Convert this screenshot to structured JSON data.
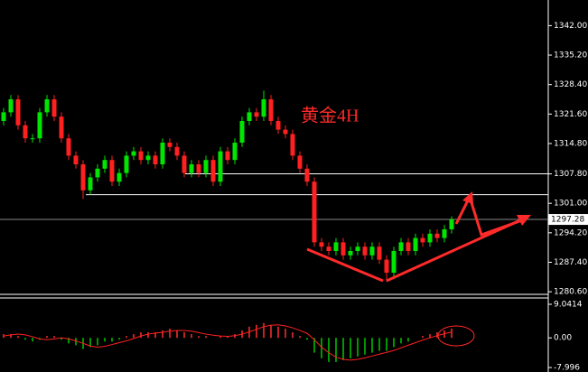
{
  "chart_data": {
    "type": "candlestick",
    "title": "黄金4H",
    "open": [
      1320,
      1322,
      1325,
      1319,
      1316,
      1316,
      1322,
      1325,
      1321,
      1316,
      1312,
      1310,
      1304,
      1307,
      1309,
      1311,
      1306,
      1308,
      1312,
      1313,
      1311,
      1312,
      1310,
      1315,
      1314,
      1312,
      1308,
      1310,
      1308,
      1311,
      1306,
      1313,
      1311,
      1315,
      1320,
      1322,
      1321,
      1325,
      1320,
      1318,
      1317,
      1312,
      1309,
      1306,
      1292,
      1291,
      1290,
      1292,
      1289,
      1290,
      1291,
      1289,
      1291,
      1288,
      1285,
      1290,
      1292,
      1290,
      1293,
      1292,
      1294,
      1293,
      1295
    ],
    "high": [
      1323,
      1326,
      1326,
      1320,
      1317,
      1323,
      1326,
      1326,
      1322,
      1317,
      1313,
      1311,
      1308,
      1310,
      1312,
      1312,
      1309,
      1313,
      1314,
      1314,
      1313,
      1313,
      1316,
      1316,
      1315,
      1313,
      1311,
      1311,
      1312,
      1312,
      1314,
      1314,
      1316,
      1321,
      1323,
      1323,
      1327,
      1326,
      1321,
      1319,
      1318,
      1313,
      1310,
      1307,
      1293,
      1292,
      1293,
      1293,
      1291,
      1292,
      1292,
      1292,
      1292,
      1289,
      1291,
      1293,
      1293,
      1294,
      1294,
      1295,
      1295,
      1296,
      1298
    ],
    "low": [
      1319,
      1321,
      1318,
      1315,
      1315,
      1315,
      1321,
      1320,
      1315,
      1311,
      1309,
      1302,
      1303,
      1306,
      1308,
      1305,
      1305,
      1307,
      1311,
      1310,
      1310,
      1309,
      1309,
      1313,
      1311,
      1307,
      1307,
      1307,
      1307,
      1305,
      1305,
      1310,
      1310,
      1314,
      1319,
      1320,
      1320,
      1319,
      1317,
      1316,
      1311,
      1308,
      1305,
      1291,
      1290,
      1289,
      1289,
      1288,
      1288,
      1289,
      1288,
      1288,
      1287,
      1283,
      1284,
      1289,
      1289,
      1289,
      1291,
      1291,
      1292,
      1292,
      1294
    ],
    "close": [
      1322,
      1325,
      1319,
      1316,
      1316,
      1322,
      1325,
      1321,
      1316,
      1312,
      1310,
      1304,
      1307,
      1309,
      1311,
      1306,
      1308,
      1312,
      1313,
      1311,
      1312,
      1310,
      1315,
      1314,
      1312,
      1308,
      1310,
      1308,
      1311,
      1306,
      1313,
      1311,
      1315,
      1320,
      1322,
      1321,
      1325,
      1320,
      1318,
      1317,
      1312,
      1309,
      1306,
      1292,
      1291,
      1290,
      1292,
      1289,
      1290,
      1291,
      1289,
      1291,
      1288,
      1285,
      1290,
      1292,
      1290,
      1293,
      1292,
      1294,
      1293,
      1295,
      1297.28
    ],
    "up_color": "#00e600",
    "down_color": "#ff2020",
    "ylim": [
      1280,
      1347.5
    ],
    "yticks": [
      {
        "value": 1342,
        "label": "1342.00"
      },
      {
        "value": 1335.2,
        "label": "1335.20"
      },
      {
        "value": 1328.4,
        "label": "1328.40"
      },
      {
        "value": 1321.6,
        "label": "1321.60"
      },
      {
        "value": 1314.8,
        "label": "1314.80"
      },
      {
        "value": 1307.8,
        "label": "1307.80"
      },
      {
        "value": 1301,
        "label": "1301.00"
      },
      {
        "value": 1294.2,
        "label": "1294.20"
      },
      {
        "value": 1287.4,
        "label": "1287.40"
      },
      {
        "value": 1280.6,
        "label": "1280.60"
      }
    ],
    "levels": [
      1307.8,
      1303
    ],
    "last_price": 1297.28,
    "indicator": {
      "type": "macd",
      "hist": [
        1,
        1,
        0.5,
        -0.5,
        -1,
        -0.5,
        0.5,
        0.5,
        -0.5,
        -1.5,
        -2,
        -3,
        -2.5,
        -2,
        -1,
        -1,
        -0.5,
        0.5,
        1,
        1.5,
        1.5,
        1.5,
        2,
        2.5,
        2,
        1.5,
        1,
        0.5,
        0.5,
        0,
        0.5,
        0.5,
        1,
        2,
        3,
        3.5,
        4,
        3.5,
        3,
        2.5,
        1.5,
        0.5,
        -0.5,
        -4,
        -5.5,
        -6.5,
        -6.5,
        -6,
        -5.5,
        -5,
        -4.5,
        -4,
        -3.5,
        -3.5,
        -2.5,
        -1.5,
        -1,
        0,
        0.5,
        1,
        1.5,
        2,
        2.5
      ],
      "signal": [
        0.5,
        0.8,
        1,
        0.8,
        0.3,
        -0.3,
        -0.5,
        -0.3,
        0,
        -0.3,
        -0.8,
        -1.5,
        -2.2,
        -2.5,
        -2.3,
        -1.8,
        -1.3,
        -0.8,
        -0.2,
        0.5,
        1,
        1.3,
        1.5,
        1.8,
        2,
        2,
        1.8,
        1.4,
        1,
        0.7,
        0.5,
        0.4,
        0.6,
        1,
        1.6,
        2.3,
        3,
        3.4,
        3.5,
        3.2,
        2.7,
        2,
        1.2,
        -0.5,
        -2.5,
        -4,
        -5.2,
        -5.8,
        -6,
        -5.8,
        -5.4,
        -4.9,
        -4.4,
        -3.9,
        -3.4,
        -2.7,
        -2,
        -1.3,
        -0.6,
        0,
        0.6,
        1.1,
        1.6
      ],
      "pos_color": "#ff3030",
      "neg_color": "#00c800",
      "signal_color": "#ff2020",
      "ylim": [
        -9.2,
        10.5
      ],
      "yticks": [
        9.0414,
        {
          "value": 0,
          "label": "0.00"
        },
        -7.996
      ]
    }
  }
}
